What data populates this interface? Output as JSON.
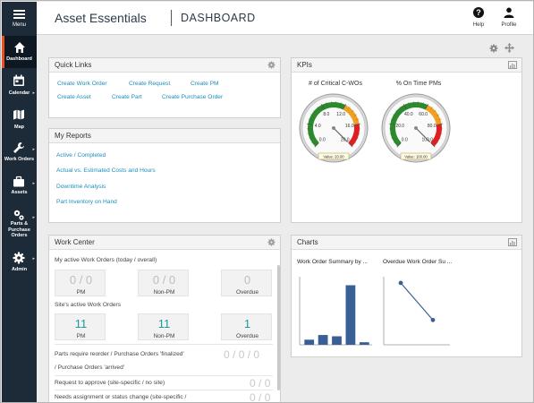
{
  "sidebar": {
    "menu_label": "Menu",
    "items": [
      {
        "label": "Dashboard",
        "icon": "home-icon"
      },
      {
        "label": "Calendar",
        "icon": "calendar-icon"
      },
      {
        "label": "Map",
        "icon": "map-icon"
      },
      {
        "label": "Work Orders",
        "icon": "wrench-icon"
      },
      {
        "label": "Assets",
        "icon": "briefcase-icon"
      },
      {
        "label": "Parts & Purchase Orders",
        "icon": "parts-icon"
      },
      {
        "label": "Admin",
        "icon": "gear-icon"
      }
    ]
  },
  "header": {
    "app_title": "Asset Essentials",
    "page_title": "DASHBOARD",
    "help_label": "Help",
    "profile_label": "Profile"
  },
  "quick_links": {
    "title": "Quick Links",
    "links": [
      "Create Work Order",
      "Create Request",
      "Create PM",
      "Create Asset",
      "Create Part",
      "Create Purchase Order"
    ]
  },
  "my_reports": {
    "title": "My Reports",
    "links": [
      "Active / Completed",
      "Actual vs. Estimated Costs and Hours",
      "Downtime Analysis",
      "Part Inventory on Hand"
    ]
  },
  "kpis": {
    "title": "KPIs",
    "gauges": [
      {
        "label": "# of Critical C-WOs",
        "ticks": [
          "0.0",
          "4.0",
          "8.0",
          "12.0",
          "16.0",
          "20.0"
        ],
        "value_text": "Value: 20.00",
        "value": 20,
        "max": 20
      },
      {
        "label": "% On Time PMs",
        "ticks": [
          "0.0",
          "20.0",
          "40.0",
          "60.0",
          "80.0",
          "100.0"
        ],
        "value_text": "Value: 100.00",
        "value": 100,
        "max": 100
      }
    ]
  },
  "work_center": {
    "title": "Work Center",
    "my_active_label": "My active Work Orders (today / overall)",
    "my_tiles": [
      {
        "a": "0",
        "b": "0",
        "label": "PM"
      },
      {
        "a": "0",
        "b": "0",
        "label": "Non-PM"
      },
      {
        "a": "0",
        "b": null,
        "label": "Overdue"
      }
    ],
    "site_active_label": "Site's active Work Orders",
    "site_tiles": [
      {
        "value": "11",
        "label": "PM"
      },
      {
        "value": "11",
        "label": "Non-PM"
      },
      {
        "value": "1",
        "label": "Overdue"
      }
    ],
    "rows": [
      {
        "text1": "Parts require reorder / Purchase Orders 'finalized'",
        "text2": "/ Purchase Orders 'arrived'",
        "values": [
          "0",
          "0",
          "0"
        ]
      },
      {
        "text1": "Request to approve (site-specific / no site)",
        "values": [
          "0",
          "0"
        ]
      },
      {
        "text1": "Needs assignment or status change (site-specific /",
        "values": [
          "0",
          "0"
        ]
      }
    ]
  },
  "charts": {
    "title": "Charts",
    "items": [
      {
        "title": "Work Order Summary by ...",
        "type": "bar"
      },
      {
        "title": "Overdue Work Order Su ...",
        "type": "line"
      }
    ]
  },
  "chart_data": [
    {
      "type": "bar",
      "title": "Work Order Summary by ...",
      "values": [
        1.2,
        2.3,
        2.0,
        14.0,
        0.6
      ],
      "ylim": [
        0,
        16
      ]
    },
    {
      "type": "line",
      "title": "Overdue Work Order Su ...",
      "values": [
        1,
        0.4
      ],
      "ylim": [
        0,
        1.1
      ]
    }
  ],
  "colors": {
    "sidebar_bg": "#1d2a38",
    "accent": "#e8501f",
    "link": "#1a8fbd",
    "teal": "#1c9aa0",
    "bar": "#3a5e96"
  }
}
